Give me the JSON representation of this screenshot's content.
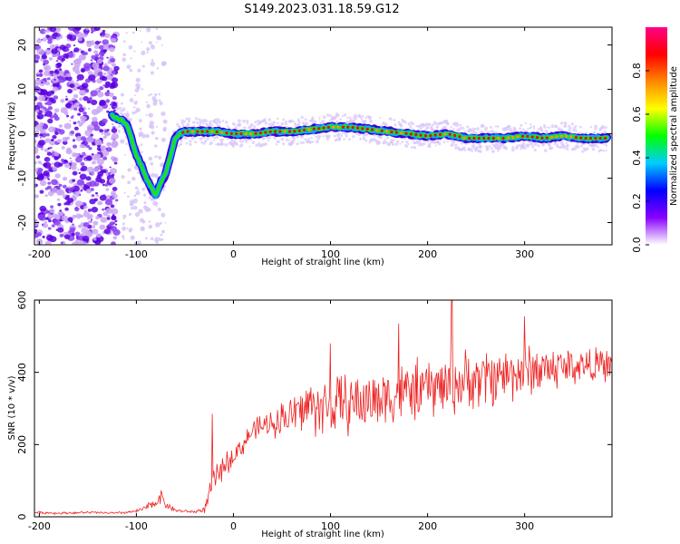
{
  "title": "S149.2023.031.18.59.G12",
  "colors": {
    "snr_line": "#ee2222",
    "ridge_core": "#dd1111",
    "background": "#ffffff",
    "axis": "#000000"
  },
  "chart_data": [
    {
      "type": "heatmap",
      "xlabel": "Height of straight line (km)",
      "ylabel": "Frequency (Hz)",
      "xlim": [
        -205,
        390
      ],
      "ylim": [
        -25,
        24
      ],
      "x_ticks": [
        -200,
        -100,
        0,
        100,
        200,
        300
      ],
      "y_ticks": [
        -20,
        -10,
        0,
        10,
        20
      ],
      "colorbar": {
        "label": "Normalized spectral amplitude",
        "range": [
          0.0,
          1.0
        ],
        "ticks": [
          "0.0",
          "0.2",
          "0.4",
          "0.6",
          "0.8"
        ],
        "colormap": [
          "#ffffff",
          "#8800ff",
          "#0000ff",
          "#00ccff",
          "#00ff00",
          "#ffff00",
          "#ff8800",
          "#ff0000",
          "#ff0088"
        ]
      },
      "ridge_track": {
        "x": [
          -125,
          -115,
          -110,
          -105,
          -100,
          -95,
          -90,
          -85,
          -80,
          -75,
          -70,
          -65,
          -60,
          -55,
          -50,
          -40,
          -20,
          0,
          20,
          40,
          60,
          80,
          100,
          120,
          140,
          160,
          180,
          200,
          220,
          240,
          260,
          280,
          300,
          320,
          340,
          360,
          385
        ],
        "y": [
          4,
          3,
          2,
          -1,
          -5,
          -7,
          -10,
          -12,
          -14,
          -11,
          -9,
          -5,
          -1,
          0,
          0.5,
          0.5,
          0.5,
          0,
          0,
          0.5,
          0.5,
          1,
          1.5,
          1.5,
          1,
          0.5,
          0,
          -0.5,
          0,
          -1,
          -1,
          -1,
          -0.5,
          -1,
          -0.5,
          -1,
          -1
        ]
      },
      "noise_region_x": [
        -205,
        -120
      ]
    },
    {
      "type": "line",
      "xlabel": "Height of straight line (km)",
      "ylabel": "SNR (10 * v/v)",
      "xlim": [
        -205,
        390
      ],
      "ylim": [
        0,
        600
      ],
      "x_ticks": [
        -200,
        -100,
        0,
        100,
        200,
        300
      ],
      "y_ticks": [
        0,
        200,
        400,
        600
      ],
      "series": [
        {
          "x": [
            -205,
            -180,
            -150,
            -120,
            -100,
            -90,
            -80,
            -75,
            -70,
            -60,
            -50,
            -40,
            -30,
            -25,
            -20,
            -10,
            0,
            10,
            20,
            30,
            40,
            50,
            60,
            70,
            80,
            90,
            100,
            120,
            140,
            160,
            180,
            200,
            220,
            240,
            260,
            280,
            300,
            320,
            340,
            360,
            390
          ],
          "y": [
            12,
            10,
            12,
            10,
            15,
            25,
            40,
            60,
            35,
            18,
            15,
            14,
            20,
            60,
            100,
            140,
            170,
            200,
            240,
            250,
            260,
            275,
            280,
            295,
            310,
            300,
            305,
            315,
            320,
            335,
            345,
            355,
            365,
            375,
            385,
            395,
            405,
            410,
            415,
            420,
            420
          ],
          "noise_amplitude": [
            4,
            4,
            4,
            4,
            6,
            10,
            20,
            25,
            15,
            6,
            5,
            5,
            12,
            30,
            40,
            40,
            35,
            35,
            35,
            40,
            45,
            60,
            70,
            85,
            95,
            100,
            100,
            100,
            100,
            100,
            100,
            100,
            100,
            100,
            100,
            95,
            90,
            80,
            70,
            60,
            50
          ],
          "peak_points": [
            [
              -22,
              285
            ],
            [
              225,
              600
            ],
            [
              300,
              555
            ],
            [
              170,
              535
            ],
            [
              100,
              480
            ]
          ]
        }
      ]
    }
  ]
}
